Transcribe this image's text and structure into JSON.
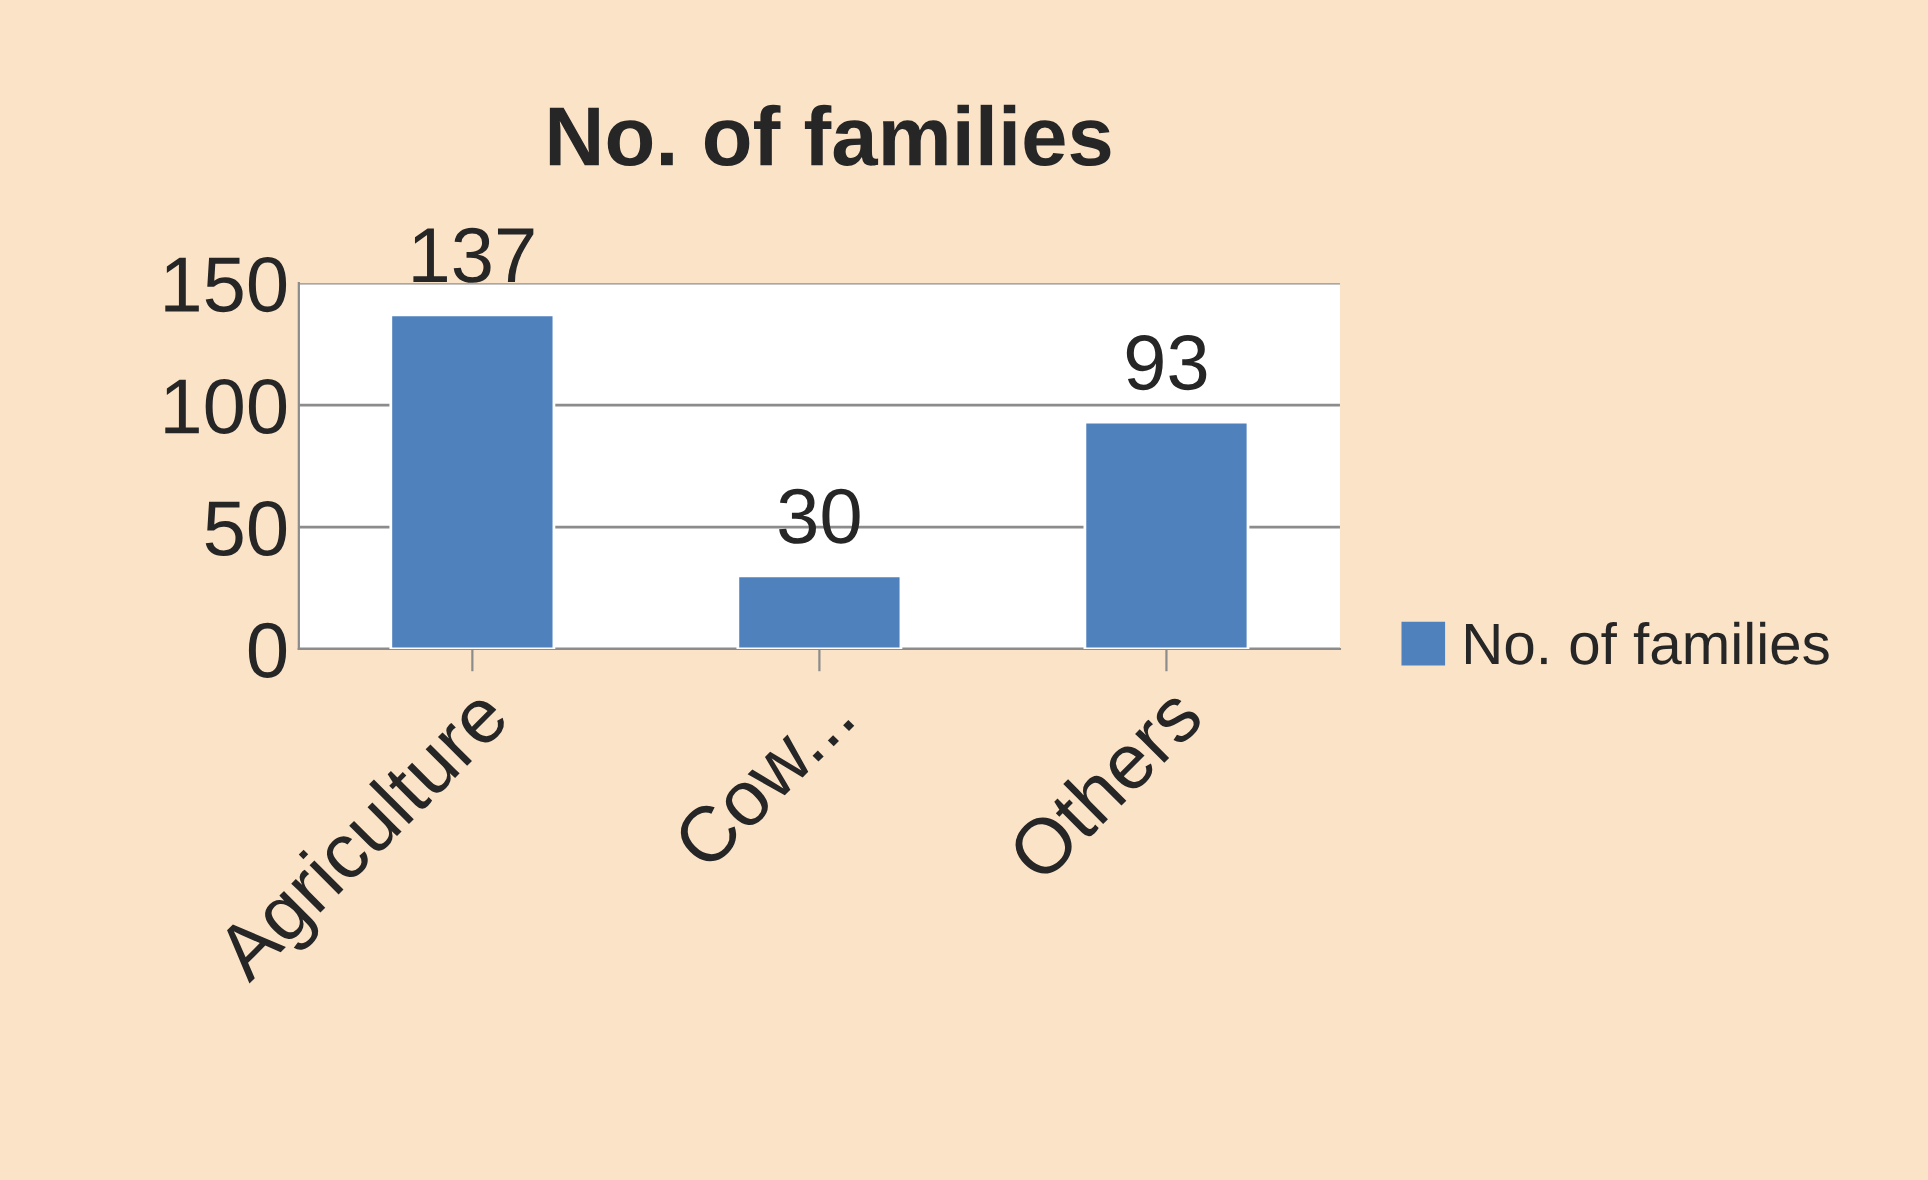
{
  "chart_data": {
    "type": "bar",
    "title": "No. of families",
    "categories": [
      "Agriculture",
      "Cow...",
      "Others"
    ],
    "series": [
      {
        "name": "No. of families",
        "color": "#4f81bd",
        "values": [
          137,
          30,
          93
        ]
      }
    ],
    "ylim": [
      0,
      150
    ],
    "yticks": [
      0,
      50,
      100,
      150
    ],
    "grid": "y",
    "legend": "right",
    "data_labels": true
  }
}
